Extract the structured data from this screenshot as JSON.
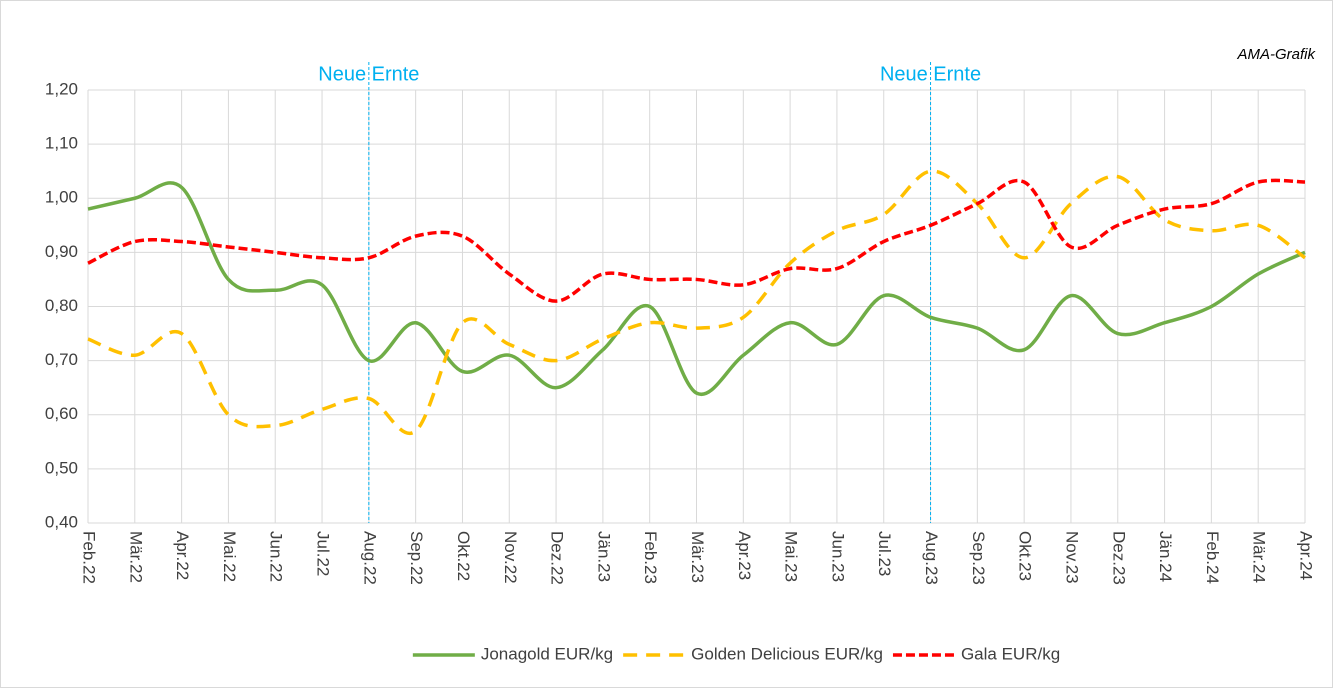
{
  "chart_data": {
    "type": "line",
    "source": "AMA-Grafik",
    "categories": [
      "Feb.22",
      "Mär.22",
      "Apr.22",
      "Mai.22",
      "Jun.22",
      "Jul.22",
      "Aug.22",
      "Sep.22",
      "Okt.22",
      "Nov.22",
      "Dez.22",
      "Jän.23",
      "Feb.23",
      "Mär.23",
      "Apr.23",
      "Mai.23",
      "Jun.23",
      "Jul.23",
      "Aug.23",
      "Sep.23",
      "Okt.23",
      "Nov.23",
      "Dez.23",
      "Jän.24",
      "Feb.24",
      "Mär.24",
      "Apr.24"
    ],
    "series": [
      {
        "name": "Jonagold EUR/kg",
        "color": "#70ad47",
        "dash": "solid",
        "values": [
          0.98,
          1.0,
          1.02,
          0.85,
          0.83,
          0.84,
          0.7,
          0.77,
          0.68,
          0.71,
          0.65,
          0.72,
          0.8,
          0.64,
          0.71,
          0.77,
          0.73,
          0.82,
          0.78,
          0.76,
          0.72,
          0.82,
          0.75,
          0.77,
          0.8,
          0.86,
          0.9
        ]
      },
      {
        "name": "Golden Delicious EUR/kg",
        "color": "#ffc000",
        "dash": "dashed",
        "values": [
          0.74,
          0.71,
          0.75,
          0.6,
          0.58,
          0.61,
          0.63,
          0.57,
          0.77,
          0.73,
          0.7,
          0.74,
          0.77,
          0.76,
          0.78,
          0.88,
          0.94,
          0.97,
          1.05,
          0.99,
          0.89,
          0.99,
          1.04,
          0.96,
          0.94,
          0.95,
          0.89
        ]
      },
      {
        "name": "Gala EUR/kg",
        "color": "#ff0000",
        "dash": "dotted",
        "values": [
          0.88,
          0.92,
          0.92,
          0.91,
          0.9,
          0.89,
          0.89,
          0.93,
          0.93,
          0.86,
          0.81,
          0.86,
          0.85,
          0.85,
          0.84,
          0.87,
          0.87,
          0.92,
          0.95,
          0.99,
          1.03,
          0.91,
          0.95,
          0.98,
          0.99,
          1.03,
          1.03
        ]
      }
    ],
    "annotations": [
      {
        "text": "Neue Ernte",
        "x": "Aug.22"
      },
      {
        "text": "Neue Ernte",
        "x": "Aug.23"
      }
    ],
    "ylim": [
      0.4,
      1.2
    ],
    "yticks": [
      {
        "value": 0.4,
        "label": "0,40"
      },
      {
        "value": 0.5,
        "label": "0,50"
      },
      {
        "value": 0.6,
        "label": "0,60"
      },
      {
        "value": 0.7,
        "label": "0,70"
      },
      {
        "value": 0.8,
        "label": "0,80"
      },
      {
        "value": 0.9,
        "label": "0,90"
      },
      {
        "value": 1.0,
        "label": "1,00"
      },
      {
        "value": 1.1,
        "label": "1,10"
      },
      {
        "value": 1.2,
        "label": "1,20"
      }
    ],
    "grid": true,
    "legend": "bottom"
  }
}
